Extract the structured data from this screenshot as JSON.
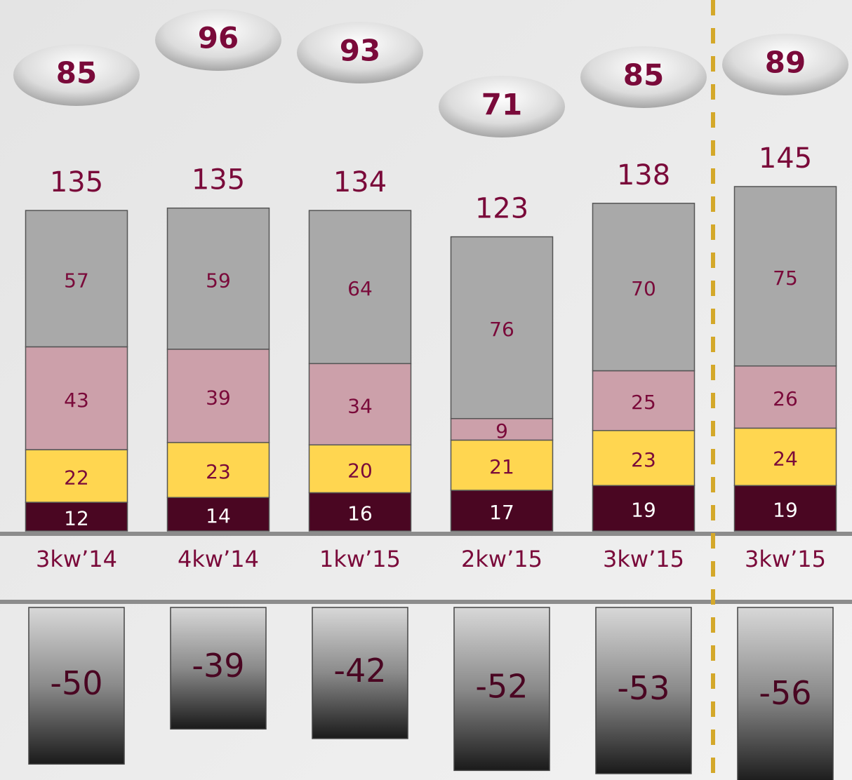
{
  "chart_data": {
    "type": "bar",
    "stacked": true,
    "categories": [
      "3kw’14",
      "4kw’14",
      "1kw’15",
      "2kw’15",
      "3kw’15",
      "3kw’15"
    ],
    "series": [
      {
        "color": "#4a0622",
        "values": [
          12,
          14,
          16,
          17,
          19,
          19
        ]
      },
      {
        "color": "#ffd650",
        "values": [
          22,
          23,
          20,
          21,
          23,
          24
        ]
      },
      {
        "color": "#cca0aa",
        "values": [
          43,
          39,
          34,
          9,
          25,
          26
        ]
      },
      {
        "color": "#a9a9a9",
        "values": [
          57,
          59,
          64,
          76,
          70,
          75
        ]
      }
    ],
    "totals": [
      135,
      135,
      134,
      123,
      138,
      145
    ],
    "ovals": [
      85,
      96,
      93,
      71,
      85,
      89
    ],
    "negatives": [
      -50,
      -39,
      -42,
      -52,
      -53,
      -56
    ],
    "ylim": [
      0,
      222
    ],
    "y2lim": [
      -55,
      0
    ]
  }
}
